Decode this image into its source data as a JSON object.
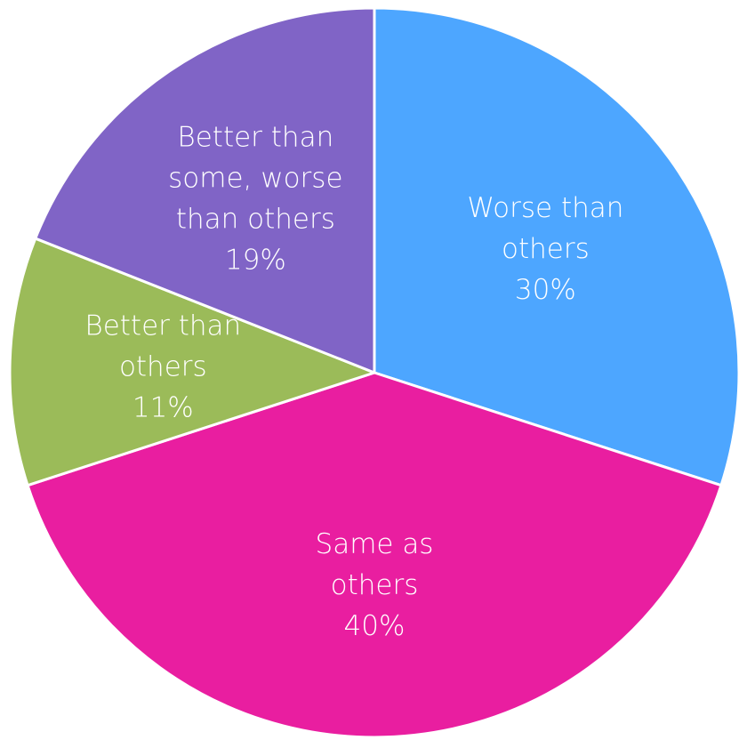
{
  "chart_data": {
    "type": "pie",
    "slices": [
      {
        "label_lines": [
          "Worse than",
          "others"
        ],
        "value_label": "30%",
        "value": 30,
        "color": "#4DA6FF"
      },
      {
        "label_lines": [
          "Same as",
          "others"
        ],
        "value_label": "40%",
        "value": 40,
        "color": "#E91EA0"
      },
      {
        "label_lines": [
          "Better than",
          "others"
        ],
        "value_label": "11%",
        "value": 11,
        "color": "#9BBB59"
      },
      {
        "label_lines": [
          "Better than",
          "some, worse",
          "than others"
        ],
        "value_label": "19%",
        "value": 19,
        "color": "#8064C6"
      }
    ],
    "start": "12 o'clock",
    "direction": "clockwise",
    "legend": "none"
  }
}
